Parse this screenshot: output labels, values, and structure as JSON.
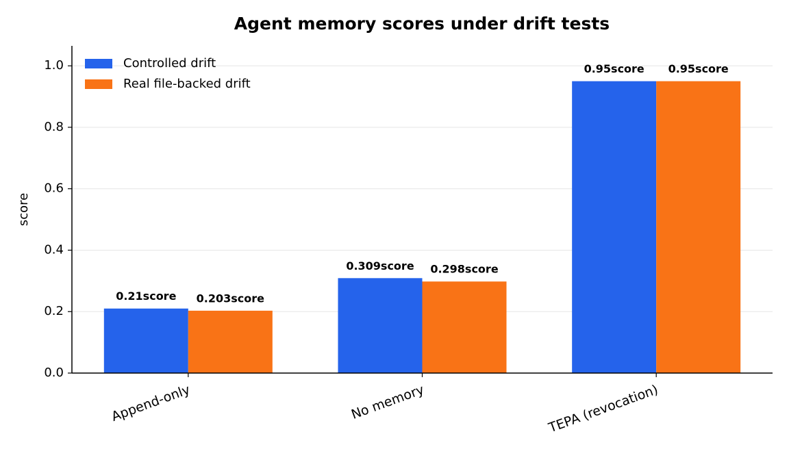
{
  "chart_data": {
    "type": "bar",
    "title": "Agent memory scores under drift tests",
    "y_label": "score",
    "categories": [
      "Append-only",
      "No memory",
      "TEPA (revocation)"
    ],
    "series": [
      {
        "name": "Controlled drift",
        "color": "#2563eb",
        "values": [
          0.21,
          0.309,
          0.95
        ],
        "value_labels": [
          "0.21score",
          "0.309score",
          "0.95score"
        ]
      },
      {
        "name": "Real file-backed drift",
        "color": "#f97316",
        "values": [
          0.203,
          0.298,
          0.95
        ],
        "value_labels": [
          "0.203score",
          "0.298score",
          "0.95score"
        ]
      }
    ],
    "ylim": [
      0,
      1.065
    ],
    "yticks": [
      {
        "value": 0,
        "label": "0.0"
      },
      0.2,
      0.4,
      0.6,
      0.8,
      {
        "value": 1,
        "label": "1.0"
      }
    ],
    "grid": true,
    "legend": "upper left"
  }
}
